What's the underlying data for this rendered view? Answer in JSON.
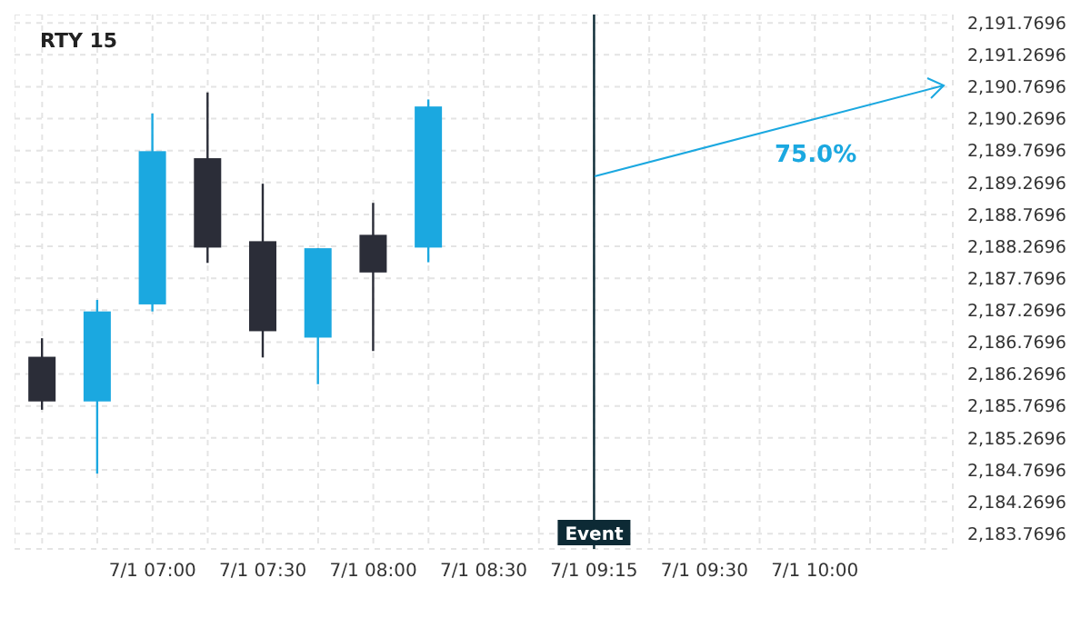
{
  "chart_data": {
    "type": "candlestick",
    "title": "RTY 15",
    "categories": [
      null,
      null,
      "7/1 07:00",
      null,
      "7/1 07:30",
      null,
      "7/1 08:00",
      null,
      "7/1 08:30",
      null,
      "7/1 09:15",
      null,
      "7/1 09:30",
      null,
      "7/1 10:00",
      null,
      null
    ],
    "ohlc": [
      [
        2186.54,
        2186.83,
        2185.71,
        2185.84
      ],
      [
        2185.84,
        2187.43,
        2184.71,
        2187.25
      ],
      [
        2187.36,
        2190.35,
        2187.25,
        2189.76
      ],
      [
        2189.65,
        2190.68,
        2188.01,
        2188.25
      ],
      [
        2188.35,
        2189.25,
        2186.53,
        2186.94
      ],
      [
        2186.84,
        2188.24,
        2186.11,
        2188.24
      ],
      [
        2188.45,
        2188.95,
        2186.63,
        2187.86
      ],
      [
        2188.25,
        2190.57,
        2188.02,
        2190.46
      ],
      null,
      null,
      null,
      null,
      null,
      null,
      null,
      null,
      null
    ],
    "colors": [
      "#2b2d38",
      "#1ba8e0",
      "#1ba8e0",
      "#2b2d38",
      "#2b2d38",
      "#1ba8e0",
      "#2b2d38",
      "#1ba8e0",
      null,
      null,
      null,
      null,
      null,
      null,
      null,
      null,
      null
    ],
    "ylim": [
      2183.53,
      2191.9
    ],
    "yticks": [
      {
        "value": 2183.7696,
        "label": "2,183.7696"
      },
      {
        "value": 2184.2696,
        "label": "2,184.2696"
      },
      {
        "value": 2184.7696,
        "label": "2,184.7696"
      },
      {
        "value": 2185.2696,
        "label": "2,185.2696"
      },
      {
        "value": 2185.7696,
        "label": "2,185.7696"
      },
      {
        "value": 2186.2696,
        "label": "2,186.2696"
      },
      {
        "value": 2186.7696,
        "label": "2,186.7696"
      },
      {
        "value": 2187.2696,
        "label": "2,187.2696"
      },
      {
        "value": 2187.7696,
        "label": "2,187.7696"
      },
      {
        "value": 2188.2696,
        "label": "2,188.2696"
      },
      {
        "value": 2188.7696,
        "label": "2,188.7696"
      },
      {
        "value": 2189.2696,
        "label": "2,189.2696"
      },
      {
        "value": 2189.7696,
        "label": "2,189.7696"
      },
      {
        "value": 2190.2696,
        "label": "2,190.2696"
      },
      {
        "value": 2190.7696,
        "label": "2,190.7696"
      },
      {
        "value": 2191.2696,
        "label": "2,191.2696"
      },
      {
        "value": 2191.7696,
        "label": "2,191.7696"
      }
    ],
    "ref_lines": [
      {
        "axis": "x",
        "value": "7/1 09:15",
        "label": "Event",
        "color": "#0d2a35"
      }
    ],
    "annotations": [
      "75.0%"
    ],
    "grid": true,
    "legend": false
  }
}
